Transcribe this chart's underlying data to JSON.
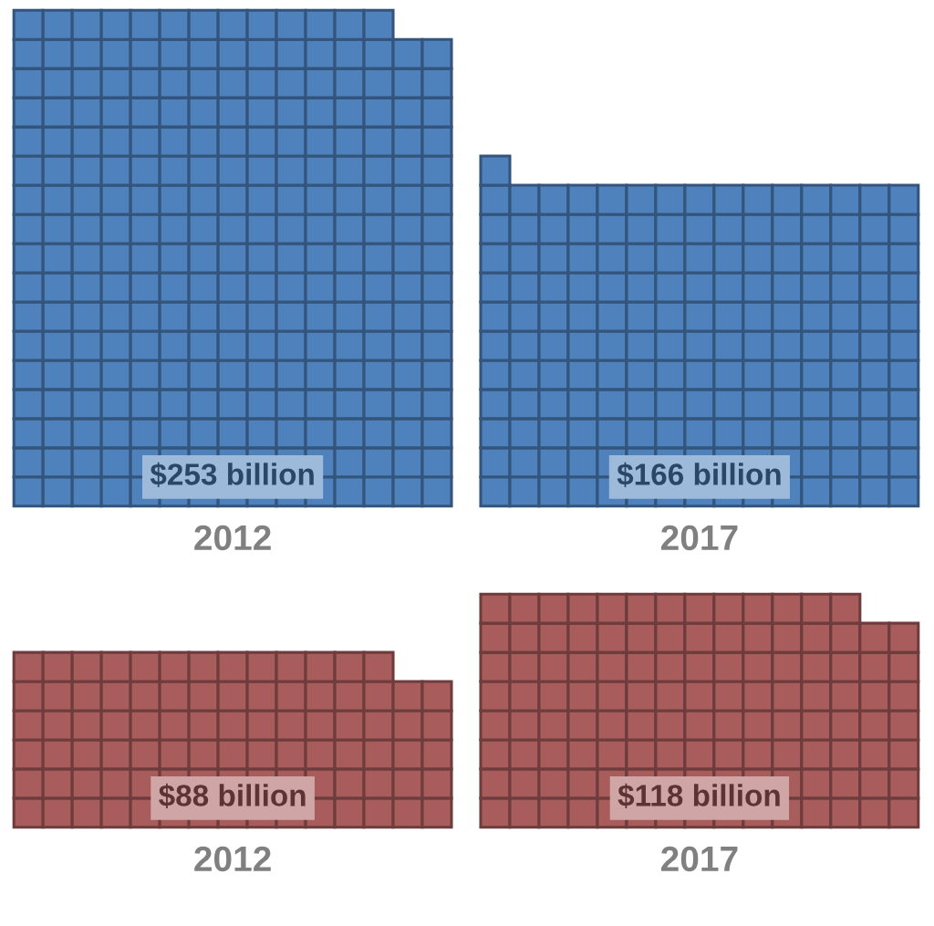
{
  "chart_data": [
    {
      "type": "other",
      "categories": [
        "2012",
        "2017"
      ],
      "values": [
        253,
        166
      ],
      "color": "#4f81bd",
      "value_labels": [
        "$253 billion",
        "$166 billion"
      ]
    },
    {
      "type": "other",
      "categories": [
        "2012",
        "2017"
      ],
      "values": [
        88,
        118
      ],
      "color": "#a95c5c",
      "value_labels": [
        "$88 billion",
        "$118 billion"
      ]
    }
  ]
}
